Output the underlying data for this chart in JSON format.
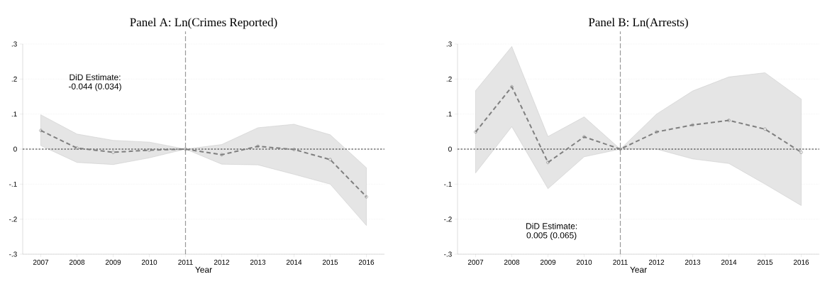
{
  "chart_data": [
    {
      "type": "line",
      "title": "Panel A: Ln(Crimes Reported)",
      "xlabel": "Year",
      "x": [
        2007,
        2008,
        2009,
        2010,
        2011,
        2012,
        2013,
        2014,
        2015,
        2016
      ],
      "series": [
        {
          "color": "#7f7f7f",
          "values": [
            0.053,
            0.003,
            -0.009,
            -0.003,
            0,
            -0.016,
            0.008,
            -0.001,
            -0.03,
            -0.136
          ],
          "lower": [
            0.01,
            -0.038,
            -0.044,
            -0.025,
            0,
            -0.043,
            -0.045,
            -0.072,
            -0.1,
            -0.218
          ],
          "upper": [
            0.098,
            0.043,
            0.025,
            0.02,
            0,
            0.013,
            0.061,
            0.071,
            0.041,
            -0.053
          ]
        }
      ],
      "xlim": [
        2006.5,
        2016.5
      ],
      "ylim": [
        -0.3,
        0.3
      ],
      "xticks": [
        2007,
        2008,
        2009,
        2010,
        2011,
        2012,
        2013,
        2014,
        2015,
        2016
      ],
      "yticks": [
        {
          "value": -0.3,
          "label": "-.3"
        },
        {
          "value": -0.2,
          "label": "-.2"
        },
        {
          "value": -0.1,
          "label": "-.1"
        },
        0,
        {
          "value": 0.1,
          "label": ".1"
        },
        {
          "value": 0.2,
          "label": ".2"
        },
        {
          "value": 0.3,
          "label": ".3"
        }
      ],
      "ref_lines": [
        {
          "axis": "y",
          "value": 0,
          "color": "#000000",
          "line_style": "dashed"
        },
        {
          "axis": "x",
          "value": 2011,
          "color": "#999999",
          "line_style": "dashed"
        }
      ],
      "annotations": [
        "DiD Estimate:",
        "-0.044 (0.034)"
      ],
      "grid": "y",
      "marker": "circle",
      "line_style": "dashed"
    },
    {
      "type": "line",
      "title": "Panel B: Ln(Arrests)",
      "xlabel": "Year",
      "x": [
        2007,
        2008,
        2009,
        2010,
        2011,
        2012,
        2013,
        2014,
        2015,
        2016
      ],
      "series": [
        {
          "color": "#7f7f7f",
          "values": [
            0.049,
            0.178,
            -0.038,
            0.035,
            0,
            0.049,
            0.069,
            0.082,
            0.057,
            -0.009
          ],
          "lower": [
            -0.068,
            0.064,
            -0.113,
            -0.022,
            0,
            0,
            -0.028,
            -0.041,
            -0.1,
            -0.161
          ],
          "upper": [
            0.167,
            0.293,
            0.036,
            0.092,
            0,
            0.1,
            0.166,
            0.206,
            0.218,
            0.143
          ]
        }
      ],
      "xlim": [
        2006.5,
        2016.5
      ],
      "ylim": [
        -0.3,
        0.3
      ],
      "xticks": [
        2007,
        2008,
        2009,
        2010,
        2011,
        2012,
        2013,
        2014,
        2015,
        2016
      ],
      "yticks": [
        {
          "value": -0.3,
          "label": "-.3"
        },
        {
          "value": -0.2,
          "label": "-.2"
        },
        {
          "value": -0.1,
          "label": "-.1"
        },
        0,
        {
          "value": 0.1,
          "label": ".1"
        },
        {
          "value": 0.2,
          "label": ".2"
        },
        {
          "value": 0.3,
          "label": ".3"
        }
      ],
      "ref_lines": [
        {
          "axis": "y",
          "value": 0,
          "color": "#000000",
          "line_style": "dashed"
        },
        {
          "axis": "x",
          "value": 2011,
          "color": "#999999",
          "line_style": "dashed"
        }
      ],
      "annotations": [
        "DiD Estimate:",
        "0.005 (0.065)"
      ],
      "grid": "y",
      "marker": "circle",
      "line_style": "dashed"
    }
  ]
}
